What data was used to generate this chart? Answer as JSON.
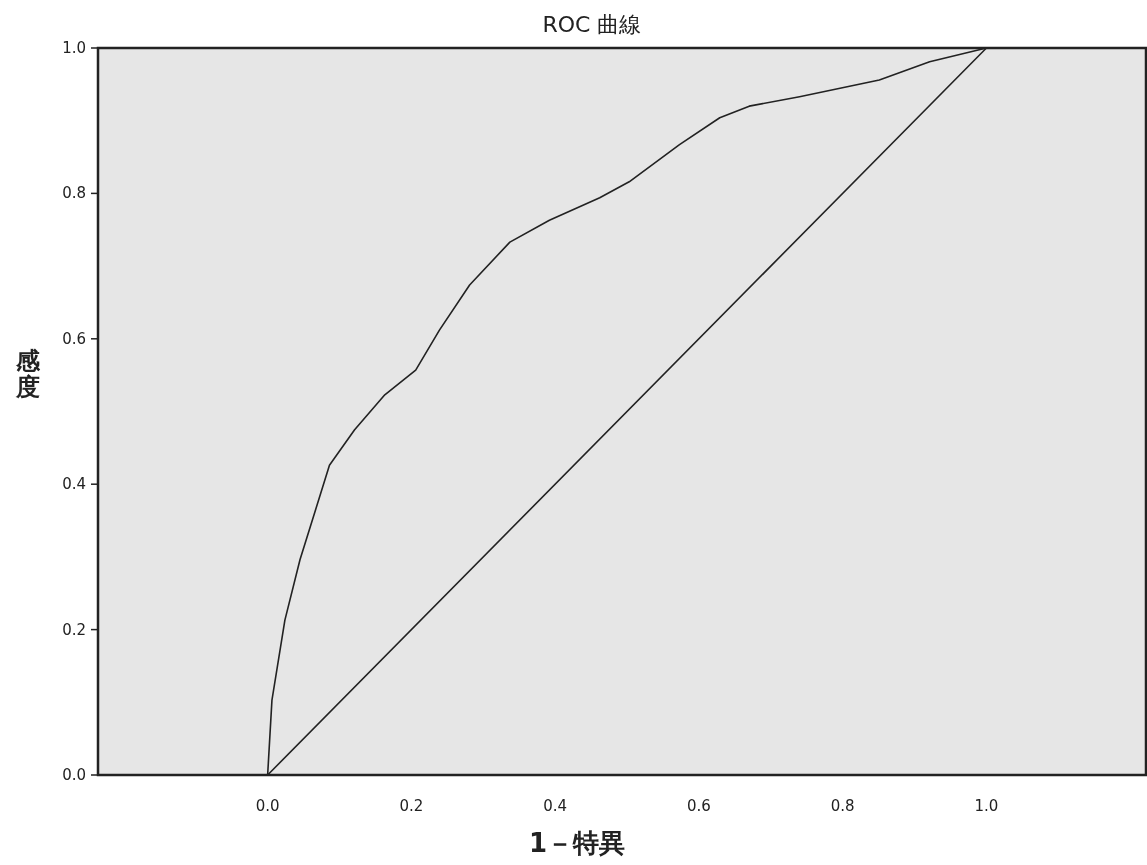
{
  "chart_data": {
    "type": "line",
    "title": "ROC 曲線",
    "xlabel": "1－特異",
    "ylabel": "感度",
    "xlim": [
      -0.236,
      1.222
    ],
    "ylim": [
      0,
      1
    ],
    "xticks": [
      {
        "value": 0,
        "label": "0.0"
      },
      {
        "value": 0.2,
        "label": "0.2"
      },
      {
        "value": 0.4,
        "label": "0.4"
      },
      {
        "value": 0.6,
        "label": "0.6"
      },
      {
        "value": 0.8,
        "label": "0.8"
      },
      {
        "value": 1,
        "label": "1.0"
      }
    ],
    "yticks": [
      {
        "value": 0,
        "label": "0.0"
      },
      {
        "value": 0.2,
        "label": "0.2"
      },
      {
        "value": 0.4,
        "label": "0.4"
      },
      {
        "value": 0.6,
        "label": "0.6"
      },
      {
        "value": 0.8,
        "label": "0.8"
      },
      {
        "value": 1,
        "label": "1.0"
      }
    ],
    "grid": false,
    "marker": "none",
    "line_style": "solid",
    "series": [
      {
        "color": "#222222",
        "x": [
          0,
          0.006,
          0.024,
          0.045,
          0.086,
          0.121,
          0.163,
          0.206,
          0.239,
          0.281,
          0.337,
          0.392,
          0.462,
          0.503,
          0.573,
          0.629,
          0.67,
          0.74,
          0.851,
          0.921,
          1
        ],
        "values": [
          0,
          0.103,
          0.213,
          0.296,
          0.426,
          0.475,
          0.523,
          0.557,
          0.612,
          0.674,
          0.733,
          0.763,
          0.794,
          0.816,
          0.867,
          0.904,
          0.92,
          0.933,
          0.956,
          0.981,
          1
        ]
      },
      {
        "color": "#222222",
        "x": [
          0,
          1
        ],
        "values": [
          0,
          1
        ]
      }
    ]
  }
}
